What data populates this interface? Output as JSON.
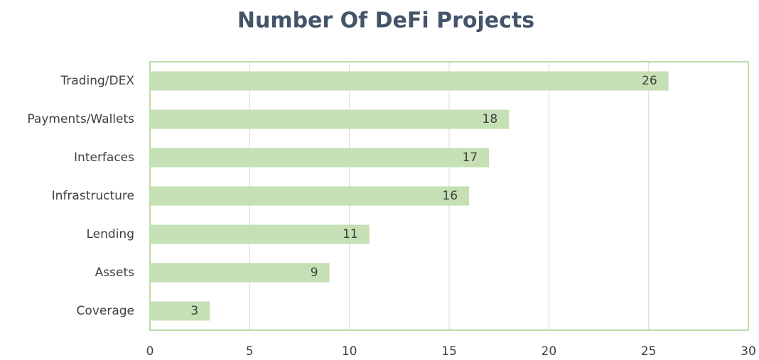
{
  "chart_data": {
    "type": "bar",
    "orientation": "horizontal",
    "title": "Number Of DeFi Projects",
    "categories": [
      "Trading/DEX",
      "Payments/Wallets",
      "Interfaces",
      "Infrastructure",
      "Lending",
      "Assets",
      "Coverage"
    ],
    "values": [
      26,
      18,
      17,
      16,
      11,
      9,
      3
    ],
    "color": "#c5e0b4",
    "xlim": [
      0,
      30
    ],
    "xticks": [
      0,
      5,
      10,
      15,
      20,
      25,
      30
    ],
    "grid": true
  }
}
